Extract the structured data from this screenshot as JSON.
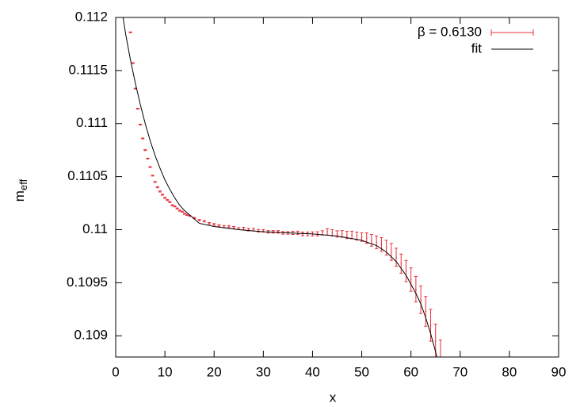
{
  "chart_data": {
    "type": "scatter",
    "xlabel": "x",
    "ylabel": "m",
    "ylabel_subscript": "eff",
    "xlim": [
      0,
      90
    ],
    "ylim": [
      0.1088,
      0.112
    ],
    "xticks": [
      0,
      10,
      20,
      30,
      40,
      50,
      60,
      70,
      80,
      90
    ],
    "yticks": [
      0.109,
      0.1095,
      0.11,
      0.1105,
      0.111,
      0.1115,
      0.112
    ],
    "legend": "top-right",
    "series": [
      {
        "name": "β = 0.6130",
        "color": "#e8303a",
        "style": "errorbars",
        "x": [
          3,
          3.5,
          4,
          4.5,
          5,
          5.5,
          6,
          6.5,
          7,
          7.5,
          8,
          8.5,
          9,
          9.5,
          10,
          10.5,
          11,
          11.5,
          12,
          12.5,
          13,
          13.5,
          14,
          14.5,
          15,
          16,
          17,
          18,
          19,
          20,
          21,
          22,
          23,
          24,
          25,
          26,
          27,
          28,
          29,
          30,
          31,
          32,
          33,
          34,
          35,
          36,
          37,
          38,
          39,
          40,
          41,
          42,
          43,
          44,
          45,
          46,
          47,
          48,
          49,
          50,
          51,
          52,
          53,
          54,
          55,
          56,
          57,
          58,
          59,
          60,
          61,
          62,
          63,
          64,
          65,
          66
        ],
        "values": [
          0.11186,
          0.11157,
          0.11133,
          0.11114,
          0.11099,
          0.11086,
          0.11075,
          0.11067,
          0.11059,
          0.11051,
          0.11045,
          0.1104,
          0.11036,
          0.11033,
          0.1103,
          0.11028,
          0.11026,
          0.11023,
          0.11022,
          0.1102,
          0.11018,
          0.11017,
          0.11015,
          0.11014,
          0.11013,
          0.11011,
          0.11009,
          0.11008,
          0.11006,
          0.11005,
          0.11004,
          0.11003,
          0.11003,
          0.11002,
          0.11001,
          0.11001,
          0.11,
          0.11,
          0.10999,
          0.10999,
          0.10998,
          0.10998,
          0.10998,
          0.10997,
          0.10997,
          0.10997,
          0.10997,
          0.10996,
          0.10996,
          0.10996,
          0.10996,
          0.10997,
          0.10998,
          0.10997,
          0.10996,
          0.10996,
          0.10995,
          0.10995,
          0.10994,
          0.10993,
          0.10992,
          0.1099,
          0.10988,
          0.10986,
          0.10983,
          0.10979,
          0.10974,
          0.10968,
          0.10961,
          0.10953,
          0.10944,
          0.10934,
          0.10923,
          0.1091,
          0.10895,
          0.10878
        ],
        "errors": [
          4e-06,
          4e-06,
          4e-06,
          4e-06,
          4e-06,
          4e-06,
          4e-06,
          4e-06,
          4e-06,
          4e-06,
          4e-06,
          5e-06,
          5e-06,
          5e-06,
          5e-06,
          5e-06,
          5e-06,
          5e-06,
          5e-06,
          5e-06,
          5e-06,
          5e-06,
          5e-06,
          5e-06,
          5e-06,
          6e-06,
          6e-06,
          7e-06,
          7e-06,
          8e-06,
          8e-06,
          9e-06,
          9e-06,
          1e-05,
          1e-05,
          1.2e-05,
          1.2e-05,
          1.2e-05,
          1.2e-05,
          1.2e-05,
          1.2e-05,
          1.2e-05,
          1.2e-05,
          1.2e-05,
          1.2e-05,
          1.5e-05,
          1.6e-05,
          1.7e-05,
          1.8e-05,
          1.9e-05,
          2e-05,
          2e-05,
          3e-05,
          3e-05,
          3e-05,
          3.2e-05,
          3.4e-05,
          3.6e-05,
          3.8e-05,
          4e-05,
          5e-05,
          5.5e-05,
          6e-05,
          6.5e-05,
          7e-05,
          8e-05,
          8.5e-05,
          9e-05,
          0.0001,
          0.00011,
          0.00012,
          0.00013,
          0.00014,
          0.00015,
          0.00016,
          0.00018
        ]
      },
      {
        "name": "fit",
        "color": "#000000",
        "style": "line",
        "x": [
          1,
          2,
          3,
          4,
          5,
          6,
          7,
          8,
          9,
          10,
          11,
          12,
          13,
          14,
          15,
          17,
          20,
          25,
          30,
          35,
          40,
          45,
          50,
          53,
          55,
          57,
          59,
          61,
          62,
          63,
          64,
          65,
          66
        ],
        "values": [
          0.11215,
          0.11185,
          0.1116,
          0.11138,
          0.11118,
          0.111,
          0.11084,
          0.1107,
          0.11058,
          0.11047,
          0.11038,
          0.1103,
          0.11023,
          0.11018,
          0.11014,
          0.11006,
          0.11003,
          0.11,
          0.10998,
          0.10997,
          0.10996,
          0.10994,
          0.1099,
          0.10985,
          0.10979,
          0.1097,
          0.10957,
          0.1094,
          0.1093,
          0.10917,
          0.10902,
          0.10885,
          0.10866
        ]
      }
    ]
  }
}
